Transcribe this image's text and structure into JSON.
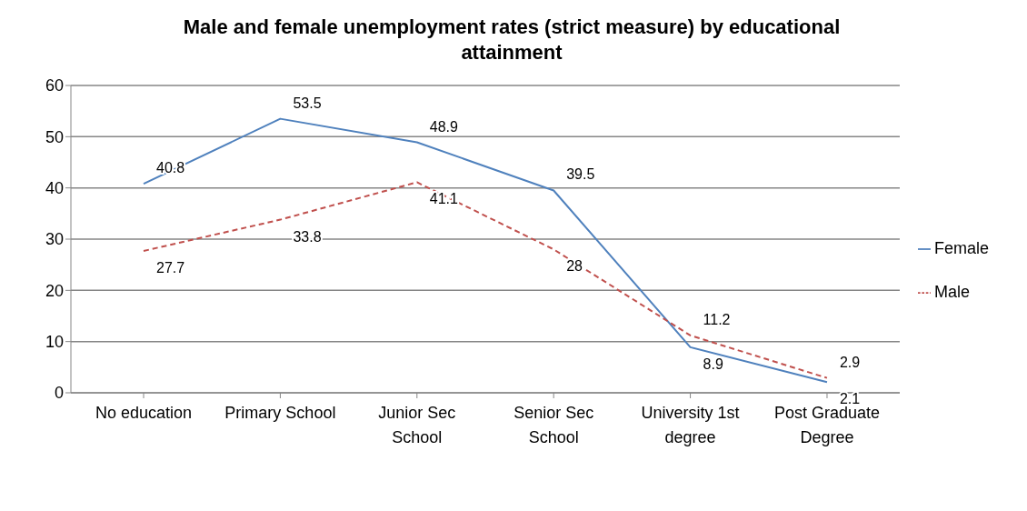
{
  "chart_data": {
    "type": "line",
    "title": "Male and female unemployment rates (strict measure) by educational attainment",
    "categories": [
      "No education",
      "Primary School",
      "Junior Sec School",
      "Senior Sec School",
      "University 1st degree",
      "Post Graduate Degree"
    ],
    "series": [
      {
        "name": "Female",
        "color": "#4f81bd",
        "line_style": "solid",
        "values": [
          40.8,
          53.5,
          48.9,
          39.5,
          8.9,
          2.1
        ]
      },
      {
        "name": "Male",
        "color": "#c0504d",
        "line_style": "dashed",
        "values": [
          27.7,
          33.8,
          41.1,
          28,
          11.2,
          2.9
        ]
      }
    ],
    "ylim": [
      0,
      60
    ],
    "yticks": [
      0,
      10,
      20,
      30,
      40,
      50,
      60
    ],
    "grid": "y",
    "legend": "right",
    "marker": "none",
    "data_labels": true
  }
}
